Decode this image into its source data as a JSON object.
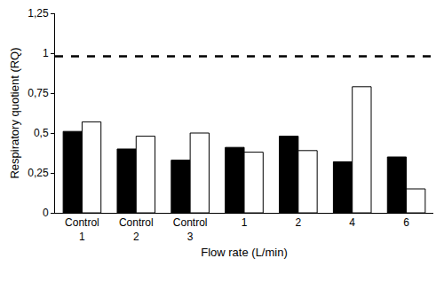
{
  "chart_data": {
    "type": "bar",
    "x_label": "Flow rate (L/min)",
    "y_label": "Respiratory quotient (RQ)",
    "categories": [
      "Control 1",
      "Control 2",
      "Control 3",
      "1",
      "2",
      "4",
      "6"
    ],
    "series": [
      {
        "color": "#000000",
        "values": [
          0.51,
          0.4,
          0.33,
          0.41,
          0.48,
          0.32,
          0.35
        ]
      },
      {
        "color": "#ffffff",
        "values": [
          0.57,
          0.48,
          0.5,
          0.38,
          0.39,
          0.79,
          0.15
        ]
      }
    ],
    "ylim": [
      0,
      1.25
    ],
    "yticks": [
      0,
      {
        "value": 0.25,
        "label": "0,25"
      },
      {
        "value": 0.5,
        "label": "0,5"
      },
      {
        "value": 0.75,
        "label": "0,75"
      },
      1,
      {
        "value": 1.25,
        "label": "1,25"
      }
    ],
    "grid": false,
    "reference_line": {
      "value": 0.98,
      "line_style": "dashed",
      "color": "#000000"
    }
  }
}
